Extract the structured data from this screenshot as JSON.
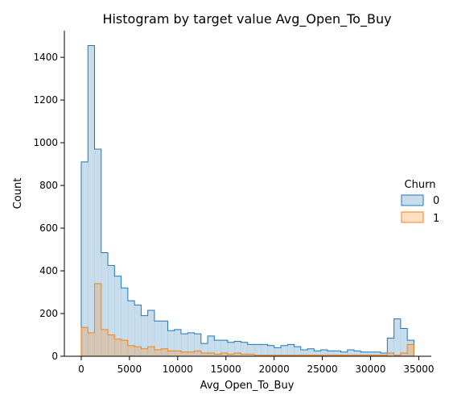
{
  "chart_data": {
    "type": "histogram",
    "title": "Histogram by target value Avg_Open_To_Buy",
    "xlabel": "Avg_Open_To_Buy",
    "ylabel": "Count",
    "xlim": [
      -1750,
      36300
    ],
    "ylim": [
      0,
      1525
    ],
    "x_ticks": [
      0,
      5000,
      10000,
      15000,
      20000,
      25000,
      30000,
      35000
    ],
    "x_tick_labels": [
      "0",
      "5000",
      "10000",
      "15000",
      "20000",
      "25000",
      "30000",
      "35000"
    ],
    "y_ticks": [
      0,
      200,
      400,
      600,
      800,
      1000,
      1200,
      1400
    ],
    "y_tick_labels": [
      "0",
      "200",
      "400",
      "600",
      "800",
      "1000",
      "1200",
      "1400"
    ],
    "bin_start": 0,
    "bin_width": 690,
    "grid": false,
    "legend": {
      "title": "Churn",
      "placement": "center-right",
      "entries": [
        "0",
        "1"
      ]
    },
    "series": [
      {
        "name": "0",
        "color": "#1f77b4",
        "values": [
          910,
          1455,
          970,
          485,
          425,
          375,
          320,
          260,
          240,
          190,
          215,
          165,
          165,
          120,
          125,
          105,
          110,
          105,
          60,
          95,
          75,
          75,
          65,
          70,
          65,
          55,
          55,
          55,
          50,
          40,
          50,
          55,
          45,
          30,
          35,
          25,
          30,
          25,
          25,
          20,
          30,
          25,
          20,
          20,
          20,
          15,
          85,
          175,
          130,
          75
        ]
      },
      {
        "name": "1",
        "color": "#ff7f0e",
        "values": [
          135,
          110,
          340,
          125,
          100,
          80,
          75,
          50,
          45,
          35,
          45,
          30,
          35,
          25,
          25,
          20,
          20,
          25,
          15,
          15,
          10,
          15,
          10,
          15,
          10,
          10,
          5,
          5,
          5,
          5,
          5,
          5,
          5,
          5,
          5,
          5,
          5,
          5,
          5,
          5,
          5,
          5,
          5,
          5,
          5,
          5,
          15,
          5,
          15,
          55
        ]
      }
    ]
  }
}
